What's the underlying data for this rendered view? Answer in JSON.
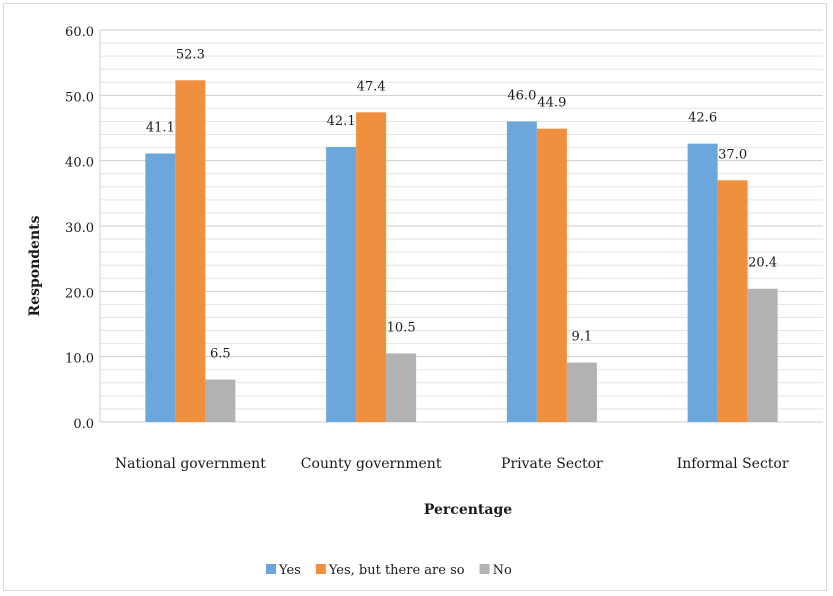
{
  "chart_data": {
    "type": "bar",
    "categories": [
      "National government",
      "County government",
      "Private Sector",
      "Informal Sector"
    ],
    "series": [
      {
        "name": "Yes",
        "values": [
          41.1,
          42.1,
          46.0,
          42.6
        ],
        "color": "#6ba6dc"
      },
      {
        "name": "Yes, but there are so",
        "values": [
          52.3,
          47.4,
          44.9,
          37.0
        ],
        "color": "#f08f3e"
      },
      {
        "name": "No",
        "values": [
          6.5,
          10.5,
          9.1,
          20.4
        ],
        "color": "#b2b2b2"
      }
    ],
    "data_labels": [
      [
        "41.1",
        "42.1",
        "46.0",
        "42.6"
      ],
      [
        "52.3",
        "47.4",
        "44.9",
        "37.0"
      ],
      [
        "6.5",
        "10.5",
        "9.1",
        "20.4"
      ]
    ],
    "yticks": [
      "0.0",
      "10.0",
      "20.0",
      "30.0",
      "40.0",
      "50.0",
      "60.0"
    ],
    "ylim": [
      0,
      60
    ],
    "ylabel": "Respondents",
    "xlabel": "Percentage",
    "title": "",
    "grid": true,
    "legend_position": "bottom"
  }
}
